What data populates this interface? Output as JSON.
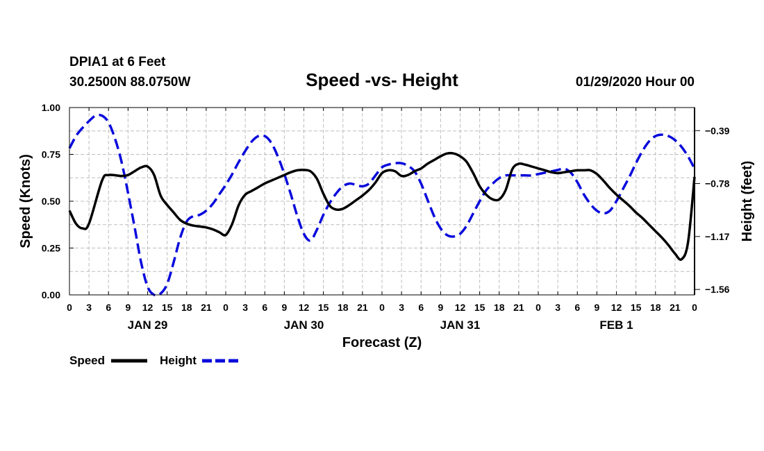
{
  "header": {
    "station": "DPIA1 at 6 Feet",
    "location": "30.2500N 88.0750W",
    "run": "01/29/2020 Hour 00"
  },
  "chart_data": {
    "type": "line",
    "title": "Speed -vs- Height",
    "xlabel": "Forecast (Z)",
    "ylabel": "Speed (Knots)",
    "y2label": "Height (feet)",
    "xlim": [
      0,
      96
    ],
    "ylim": [
      0,
      1.0
    ],
    "y2lim": [
      -1.6,
      -0.22
    ],
    "grid": true,
    "legend_position": "bottom-left",
    "x_ticks": [
      {
        "hour": 0,
        "label": "0"
      },
      {
        "hour": 3,
        "label": "3"
      },
      {
        "hour": 6,
        "label": "6"
      },
      {
        "hour": 9,
        "label": "9"
      },
      {
        "hour": 12,
        "label": "12"
      },
      {
        "hour": 15,
        "label": "15"
      },
      {
        "hour": 18,
        "label": "18"
      },
      {
        "hour": 21,
        "label": "21"
      },
      {
        "hour": 24,
        "label": "0"
      },
      {
        "hour": 27,
        "label": "3"
      },
      {
        "hour": 30,
        "label": "6"
      },
      {
        "hour": 33,
        "label": "9"
      },
      {
        "hour": 36,
        "label": "12"
      },
      {
        "hour": 39,
        "label": "15"
      },
      {
        "hour": 42,
        "label": "18"
      },
      {
        "hour": 45,
        "label": "21"
      },
      {
        "hour": 48,
        "label": "0"
      },
      {
        "hour": 51,
        "label": "3"
      },
      {
        "hour": 54,
        "label": "6"
      },
      {
        "hour": 57,
        "label": "9"
      },
      {
        "hour": 60,
        "label": "12"
      },
      {
        "hour": 63,
        "label": "15"
      },
      {
        "hour": 66,
        "label": "18"
      },
      {
        "hour": 69,
        "label": "21"
      },
      {
        "hour": 72,
        "label": "0"
      },
      {
        "hour": 75,
        "label": "3"
      },
      {
        "hour": 78,
        "label": "6"
      },
      {
        "hour": 81,
        "label": "9"
      },
      {
        "hour": 84,
        "label": "12"
      },
      {
        "hour": 87,
        "label": "15"
      },
      {
        "hour": 90,
        "label": "18"
      },
      {
        "hour": 93,
        "label": "21"
      },
      {
        "hour": 96,
        "label": "0"
      }
    ],
    "day_labels": [
      {
        "hour": 12,
        "label": "JAN 29"
      },
      {
        "hour": 36,
        "label": "JAN 30"
      },
      {
        "hour": 60,
        "label": "JAN 31"
      },
      {
        "hour": 84,
        "label": "FEB 1"
      }
    ],
    "y_ticks": [
      {
        "value": 0.0,
        "label": "0.00"
      },
      {
        "value": 0.25,
        "label": "0.25"
      },
      {
        "value": 0.5,
        "label": "0.50"
      },
      {
        "value": 0.75,
        "label": "0.75"
      },
      {
        "value": 1.0,
        "label": "1.00"
      }
    ],
    "y2_ticks": [
      {
        "value": -0.39,
        "label": "−0.39"
      },
      {
        "value": -0.78,
        "label": "−0.78"
      },
      {
        "value": -1.17,
        "label": "−1.17"
      },
      {
        "value": -1.56,
        "label": "−1.56"
      }
    ],
    "series": [
      {
        "name": "Speed",
        "axis": "left",
        "color": "#000000",
        "style": "solid",
        "x": [
          0,
          1,
          2,
          3,
          5,
          6,
          8,
          9,
          10,
          11,
          12,
          13,
          14,
          15,
          16,
          17,
          18,
          19,
          20,
          21,
          22,
          23,
          24,
          25,
          26,
          27,
          28,
          29,
          30,
          31,
          32,
          33,
          34,
          35,
          36,
          37,
          38,
          39,
          40,
          41,
          42,
          43,
          44,
          45,
          46,
          47,
          48,
          49,
          50,
          51,
          52,
          53,
          54,
          55,
          56,
          57,
          58,
          59,
          60,
          61,
          62,
          63,
          64,
          65,
          66,
          67,
          68,
          69,
          70,
          71,
          72,
          73,
          74,
          75,
          76,
          77,
          78,
          79,
          80,
          81,
          82,
          83,
          84,
          85,
          86,
          87,
          88,
          89,
          90,
          91,
          92,
          93,
          94,
          95,
          96
        ],
        "y": [
          0.45,
          0.38,
          0.355,
          0.38,
          0.61,
          0.64,
          0.635,
          0.64,
          0.66,
          0.68,
          0.685,
          0.64,
          0.53,
          0.48,
          0.44,
          0.4,
          0.38,
          0.37,
          0.365,
          0.36,
          0.35,
          0.335,
          0.32,
          0.38,
          0.48,
          0.535,
          0.555,
          0.575,
          0.595,
          0.61,
          0.625,
          0.64,
          0.655,
          0.665,
          0.667,
          0.66,
          0.62,
          0.54,
          0.475,
          0.455,
          0.46,
          0.48,
          0.505,
          0.53,
          0.56,
          0.6,
          0.65,
          0.665,
          0.66,
          0.635,
          0.64,
          0.66,
          0.675,
          0.7,
          0.72,
          0.74,
          0.755,
          0.755,
          0.74,
          0.71,
          0.65,
          0.58,
          0.535,
          0.51,
          0.51,
          0.56,
          0.67,
          0.7,
          0.695,
          0.685,
          0.675,
          0.665,
          0.655,
          0.65,
          0.655,
          0.66,
          0.665,
          0.665,
          0.665,
          0.645,
          0.61,
          0.57,
          0.535,
          0.505,
          0.475,
          0.44,
          0.41,
          0.375,
          0.34,
          0.305,
          0.265,
          0.22,
          0.19,
          0.28,
          0.63
        ]
      },
      {
        "name": "Height",
        "axis": "right",
        "color": "#0a0adc",
        "style": "dashed",
        "x": [
          0,
          1,
          2,
          3,
          4,
          5,
          6,
          7,
          8,
          9,
          10,
          11,
          12,
          13,
          14,
          15,
          16,
          17,
          18,
          19,
          20,
          21,
          22,
          23,
          24,
          25,
          26,
          27,
          28,
          29,
          30,
          31,
          32,
          33,
          34,
          35,
          36,
          37,
          38,
          39,
          40,
          41,
          42,
          43,
          44,
          45,
          46,
          47,
          48,
          49,
          50,
          51,
          52,
          53,
          54,
          55,
          56,
          57,
          58,
          59,
          60,
          61,
          62,
          63,
          64,
          65,
          66,
          67,
          68,
          69,
          70,
          71,
          72,
          73,
          74,
          75,
          76,
          77,
          78,
          79,
          80,
          81,
          82,
          83,
          84,
          85,
          86,
          87,
          88,
          89,
          90,
          91,
          92,
          93,
          94,
          95,
          96
        ],
        "y": [
          -0.52,
          -0.43,
          -0.37,
          -0.32,
          -0.28,
          -0.28,
          -0.33,
          -0.45,
          -0.62,
          -0.85,
          -1.1,
          -1.36,
          -1.54,
          -1.6,
          -1.59,
          -1.52,
          -1.36,
          -1.18,
          -1.06,
          -1.02,
          -1.01,
          -0.98,
          -0.93,
          -0.86,
          -0.79,
          -0.71,
          -0.62,
          -0.54,
          -0.47,
          -0.43,
          -0.43,
          -0.48,
          -0.58,
          -0.71,
          -0.86,
          -1.02,
          -1.15,
          -1.2,
          -1.12,
          -1.01,
          -0.92,
          -0.85,
          -0.8,
          -0.78,
          -0.79,
          -0.8,
          -0.78,
          -0.72,
          -0.66,
          -0.64,
          -0.63,
          -0.63,
          -0.65,
          -0.69,
          -0.78,
          -0.9,
          -1.02,
          -1.11,
          -1.16,
          -1.17,
          -1.15,
          -1.09,
          -1.0,
          -0.91,
          -0.83,
          -0.78,
          -0.74,
          -0.72,
          -0.72,
          -0.72,
          -0.72,
          -0.72,
          -0.71,
          -0.7,
          -0.69,
          -0.68,
          -0.67,
          -0.7,
          -0.77,
          -0.86,
          -0.93,
          -0.98,
          -1.0,
          -0.98,
          -0.91,
          -0.82,
          -0.73,
          -0.63,
          -0.54,
          -0.47,
          -0.43,
          -0.42,
          -0.43,
          -0.46,
          -0.51,
          -0.58,
          -0.67
        ]
      }
    ]
  }
}
